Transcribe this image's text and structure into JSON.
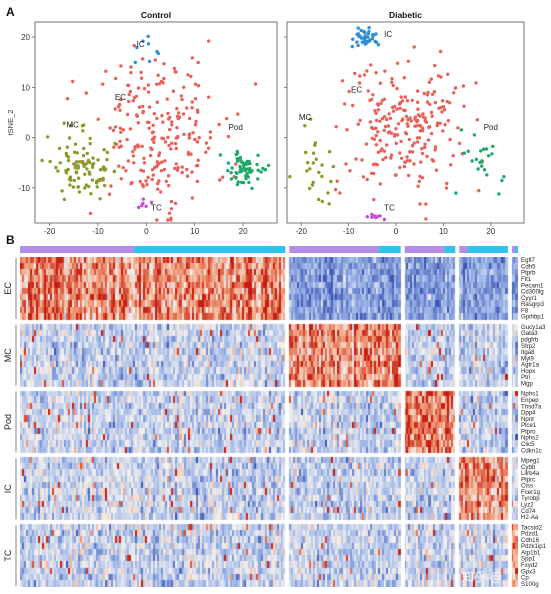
{
  "panels": {
    "a": "A",
    "b": "B"
  },
  "chart_data": [
    {
      "type": "scatter",
      "title": "Control",
      "ylabel": "tSNE_2",
      "xlim": [
        -23,
        27
      ],
      "ylim": [
        -17,
        23
      ],
      "xticks": [
        -20,
        -10,
        0,
        10,
        20
      ],
      "yticks": [
        -10,
        0,
        10,
        20
      ],
      "clusters": [
        {
          "name": "EC",
          "color": "#e8625c",
          "n": 230,
          "center": [
            2,
            1
          ],
          "spread": [
            7,
            7.5
          ],
          "label_at": [
            -6.5,
            7.5
          ]
        },
        {
          "name": "MC",
          "color": "#8c9a2a",
          "n": 90,
          "center": [
            -13.5,
            -6
          ],
          "spread": [
            3.2,
            3.2
          ],
          "label_at": [
            -16.5,
            2
          ]
        },
        {
          "name": "Pod",
          "color": "#1fa86a",
          "n": 60,
          "center": [
            20,
            -6.5
          ],
          "spread": [
            1.8,
            1.8
          ],
          "label_at": [
            17,
            1.5
          ]
        },
        {
          "name": "IC",
          "color": "#2f8fd8",
          "n": 8,
          "center": [
            0,
            18
          ],
          "spread": [
            2.5,
            1.8
          ],
          "label_at": [
            -2,
            18
          ]
        },
        {
          "name": "TC",
          "color": "#c94ad6",
          "n": 6,
          "center": [
            -0.5,
            -13.5
          ],
          "spread": [
            1,
            0.8
          ],
          "label_at": [
            1,
            -14.5
          ]
        }
      ]
    },
    {
      "type": "scatter",
      "title": "Diabetic",
      "ylabel": "",
      "xlim": [
        -23,
        27
      ],
      "ylim": [
        -17,
        23
      ],
      "xticks": [
        -20,
        -10,
        0,
        10,
        20
      ],
      "yticks": [
        -10,
        0,
        10,
        20
      ],
      "clusters": [
        {
          "name": "EC",
          "color": "#e8625c",
          "n": 230,
          "center": [
            2,
            2.5
          ],
          "spread": [
            6.5,
            6.5
          ],
          "label_at": [
            -9.5,
            9
          ]
        },
        {
          "name": "MC",
          "color": "#8c9a2a",
          "n": 25,
          "center": [
            -17.5,
            -7
          ],
          "spread": [
            2.5,
            5
          ],
          "label_at": [
            -20.5,
            3.5
          ]
        },
        {
          "name": "Pod",
          "color": "#1fa86a",
          "n": 22,
          "center": [
            18,
            -5
          ],
          "spread": [
            3,
            2.5
          ],
          "label_at": [
            18.5,
            1.5
          ]
        },
        {
          "name": "IC",
          "color": "#2f8fd8",
          "n": 40,
          "center": [
            -6,
            20
          ],
          "spread": [
            1.5,
            0.8
          ],
          "label_at": [
            -2.5,
            20
          ]
        },
        {
          "name": "TC",
          "color": "#c94ad6",
          "n": 8,
          "center": [
            -4.5,
            -16
          ],
          "spread": [
            1.2,
            0.5
          ],
          "label_at": [
            -2.5,
            -14.5
          ]
        }
      ]
    },
    {
      "type": "heatmap",
      "colormap": [
        "#3b54b5",
        "#9fb7e8",
        "#f3f1ef",
        "#f2a07c",
        "#c61d10"
      ],
      "condition_colors": [
        "#b48ee6",
        "#2fc3ee"
      ],
      "column_groups": [
        {
          "cluster": "EC",
          "n": 131,
          "control_fraction": 0.43
        },
        {
          "cluster": "MC",
          "n": 55,
          "control_fraction": 0.8
        },
        {
          "cluster": "Pod",
          "n": 25,
          "control_fraction": 0.78
        },
        {
          "cluster": "IC",
          "n": 24,
          "control_fraction": 0.17
        },
        {
          "cluster": "TC",
          "n": 3,
          "control_fraction": 0.5
        }
      ],
      "row_groups": [
        {
          "name": "EC",
          "genes": [
            "Egfl7",
            "Cdh5",
            "Ptprb",
            "Flt1",
            "Pecam1",
            "Cd300lg",
            "Cyyr1",
            "Rasgrp3",
            "F8",
            "Gpihbp1"
          ]
        },
        {
          "name": "MC",
          "genes": [
            "Gucy1a3",
            "Gata3",
            "pdgfrb",
            "Sfrp2",
            "Itga8",
            "Myl9",
            "Agtr1a",
            "Hopx",
            "Ptn",
            "Mgp"
          ]
        },
        {
          "name": "Pod",
          "genes": [
            "Nphs1",
            "Enpep",
            "Thsd7a",
            "Dpp4",
            "Npnt",
            "Plce1",
            "Ptpro",
            "Nphs2",
            "Clic5",
            "Cdkn1c"
          ]
        },
        {
          "name": "IC",
          "genes": [
            "Mpeg1",
            "Cybb",
            "Lilrb4a",
            "Ptprc",
            "Ctss",
            "Fcer1g",
            "Tyrobp",
            "Lyz2",
            "Cd74",
            "H2-Aa"
          ]
        },
        {
          "name": "TC",
          "genes": [
            "Tacstd2",
            "Pdzd1",
            "Cdh16",
            "Pdzk1ip1",
            "Atp1b1",
            "Spp1",
            "Fxyd2",
            "Gpx3",
            "Cp",
            "S100g"
          ]
        }
      ]
    }
  ],
  "watermark": "知乎 @"
}
